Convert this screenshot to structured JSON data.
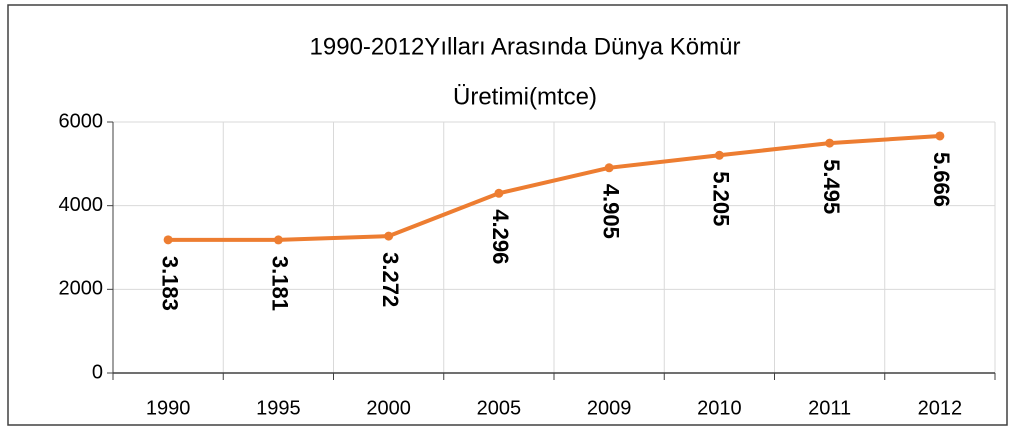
{
  "chart_data": {
    "type": "line",
    "title": [
      "1990-2012Yılları Arasında Dünya Kömür",
      "Üretimi(mtce)"
    ],
    "categories": [
      "1990",
      "1995",
      "2000",
      "2005",
      "2009",
      "2010",
      "2011",
      "2012"
    ],
    "values": [
      3183,
      3181,
      3272,
      4296,
      4905,
      5205,
      5495,
      5666
    ],
    "value_labels": [
      "3.183",
      "3.181",
      "3.272",
      "4.296",
      "4.905",
      "5.205",
      "5.495",
      "5.666"
    ],
    "color": "#ED7D31",
    "ylim": [
      0,
      6000
    ],
    "yticks": [
      0,
      2000,
      4000,
      6000
    ],
    "grid": true
  }
}
